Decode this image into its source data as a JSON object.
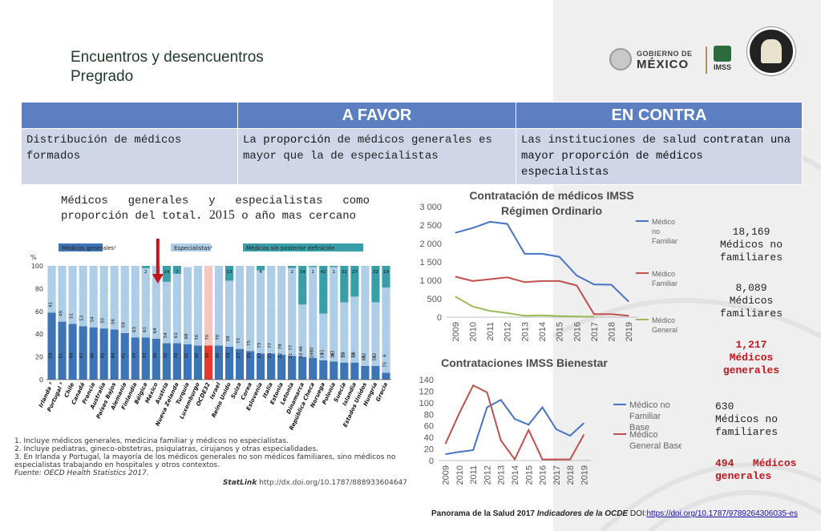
{
  "header": {
    "title_line1": "Encuentros y desencuentros",
    "title_line2": "Pregrado",
    "logo_gob_line1": "GOBIERNO DE",
    "logo_gob_line2": "MÉXICO",
    "logo_imss": "IMSS"
  },
  "table": {
    "col_favor": "A FAVOR",
    "col_contra": "EN CONTRA",
    "row_label": "Distribución de médicos formados",
    "favor_text_pre": "La ",
    "favor_text_bold": "proporción",
    "favor_text_post": " de médicos generales es mayor que la de especialistas",
    "contra_text_pre": "Las instituciones de salud ",
    "contra_text_bold": "contratan una mayor proporción de médicos especialistas"
  },
  "proportion_title_pre": "Médicos generales y especialistas como proporción del total. ",
  "proportion_title_year": "2015",
  "proportion_title_post": " o año mas cercano",
  "oecd": {
    "ylabel": "%",
    "legend": [
      "Médicos generales¹",
      "Especialistas²",
      "Médicos sin posterior definición"
    ],
    "countries": [
      "Irlanda ³",
      "Portugal ³",
      "Chile",
      "Canadá",
      "Francia",
      "Australia",
      "Países Bajos",
      "Alemania",
      "Finlandia",
      "Bélgica",
      "México",
      "Austria",
      "Nueva Zelanda",
      "Turquía",
      "Luxemburgo",
      "OCDE32",
      "Israel",
      "Reino Unido",
      "Suiza",
      "Corea",
      "Eslovenia",
      "Italia",
      "Estonia",
      "Letonia",
      "Dinamarca",
      "República Checa",
      "Noruega",
      "Polonia",
      "Suecia",
      "Islandia",
      "Estados Unidos",
      "Hungría",
      "Grecia"
    ],
    "general": [
      59,
      51,
      49,
      47,
      46,
      45,
      44,
      41,
      37,
      37,
      36,
      32,
      32,
      31,
      30,
      30,
      30,
      29,
      27,
      25,
      23,
      23,
      22,
      21,
      20,
      19,
      17,
      16,
      15,
      15,
      12,
      12,
      6
    ],
    "specialist": [
      41,
      49,
      51,
      53,
      54,
      55,
      56,
      59,
      63,
      61,
      64,
      54,
      61,
      68,
      70,
      70,
      70,
      58,
      73,
      75,
      73,
      77,
      78,
      77,
      46,
      80,
      41,
      83,
      53,
      58,
      88,
      56,
      75
    ],
    "undefined_": [
      0,
      0,
      0,
      0,
      0,
      0,
      0,
      0,
      0,
      2,
      0,
      14,
      7,
      0,
      0,
      0,
      0,
      13,
      0,
      0,
      4,
      0,
      0,
      2,
      34,
      1,
      42,
      1,
      32,
      27,
      0,
      32,
      19
    ],
    "notes": [
      "1. Incluye médicos generales, medicina familiar y médicos no especialistas.",
      "2. Incluye pediatras, gineco-obstetras, psiquiatras, cirujanos y otras especialidades.",
      "3. En Irlanda y Portugal, la mayoría de los médicos generales no son médicos familiares, sino médicos no especialistas trabajando en hospitales y otros contextos.",
      "Fuente: OECD Health Statistics 2017."
    ],
    "statlink": "StatLink",
    "statlink_url": "http://dx.doi.org/10.1787/888933604647",
    "colors": {
      "general": "#3c74b5",
      "specialist": "#aecde6",
      "undefined_": "#3a9ea8",
      "highlight": "#e53a2a",
      "arrow": "#c0161e"
    }
  },
  "chart_data": [
    {
      "type": "line",
      "title": "Contratación de médicos IMSS Régimen Ordinario",
      "x": [
        "2009",
        "2010",
        "2011",
        "2012",
        "2013",
        "2014",
        "2015",
        "2016",
        "2017",
        "2018",
        "2019"
      ],
      "ylim": [
        0,
        3000
      ],
      "yticks": [
        "0",
        "500",
        "1 000",
        "1 500",
        "2 000",
        "2 500",
        "3 000"
      ],
      "series": [
        {
          "name": "Médico no Familiar",
          "color": "#4472c4",
          "values": [
            2290,
            2420,
            2590,
            2530,
            1720,
            1720,
            1640,
            1130,
            890,
            880,
            420
          ]
        },
        {
          "name": "Médico Familiar",
          "color": "#c0504d",
          "values": [
            1100,
            980,
            1030,
            1080,
            950,
            980,
            980,
            860,
            80,
            80,
            40
          ]
        },
        {
          "name": "Médico General",
          "color": "#9bbb59",
          "values": [
            560,
            290,
            170,
            110,
            40,
            50,
            30,
            20,
            10,
            null,
            null
          ]
        }
      ]
    },
    {
      "type": "line",
      "title": "Contrataciones IMSS Bienestar",
      "x": [
        "2009",
        "2010",
        "2011",
        "2012",
        "2013",
        "2014",
        "2015",
        "2016",
        "2017",
        "2018",
        "2019"
      ],
      "ylim": [
        0,
        140
      ],
      "yticks": [
        "0",
        "20",
        "40",
        "60",
        "80",
        "100",
        "120",
        "140"
      ],
      "series": [
        {
          "name": "Médico no Familiar Base",
          "color": "#4472c4",
          "values": [
            11,
            15,
            18,
            92,
            105,
            72,
            62,
            92,
            54,
            43,
            65
          ]
        },
        {
          "name": "Médico General Base",
          "color": "#c0504d",
          "values": [
            29,
            82,
            130,
            118,
            35,
            2,
            53,
            2,
            2,
            2,
            45
          ]
        }
      ]
    }
  ],
  "right_stats": {
    "s1_num": "18,169",
    "s1_text": "Médicos no familiares",
    "s2_num": "8,089",
    "s2_text": "Médicos familiares",
    "s3_num": "1,217",
    "s3_text": "Médicos generales",
    "s4_num": "630",
    "s4_text": "Médicos no familiares",
    "s5_num": "494",
    "s5_text": "Médicos generales"
  },
  "footer": {
    "pre": "Panorama de la Salud 2017 ",
    "italic": "Indicadores de la OCDE",
    "doi": " DOI:",
    "url": "https://doi.org/10.1787/9789264306035-es"
  }
}
